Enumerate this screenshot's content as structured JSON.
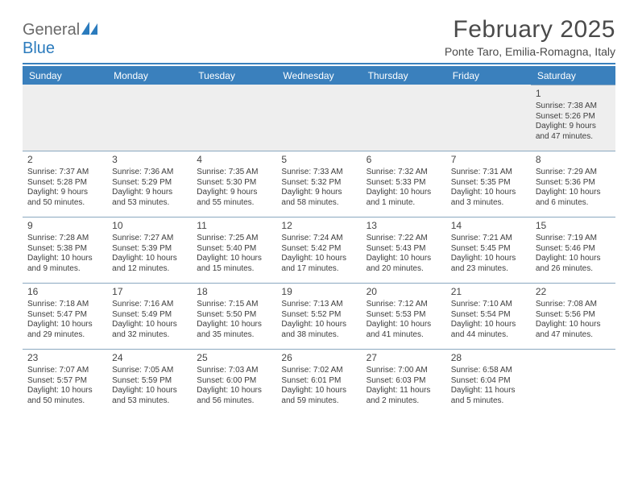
{
  "logo": {
    "part1": "General",
    "part2": "Blue"
  },
  "title": "February 2025",
  "subtitle": "Ponte Taro, Emilia-Romagna, Italy",
  "colors": {
    "header_bar": "#3a80bd",
    "header_text": "#ffffff",
    "text": "#3d3d3d",
    "title_color": "#4a4a4a",
    "logo_gray": "#6a6a6a",
    "logo_blue": "#2b7bbd",
    "blank_bg": "#eeeeee",
    "border": "#8aa8c0"
  },
  "typography": {
    "title_fontsize": 30,
    "subtitle_fontsize": 14,
    "weekday_fontsize": 12,
    "daynum_fontsize": 12,
    "body_fontsize": 10,
    "font_family": "Arial"
  },
  "layout": {
    "columns": 7,
    "rows": 5,
    "first_day_column_index": 6,
    "days_in_month": 28
  },
  "weekdays": [
    "Sunday",
    "Monday",
    "Tuesday",
    "Wednesday",
    "Thursday",
    "Friday",
    "Saturday"
  ],
  "days": [
    {
      "n": 1,
      "sunrise": "7:38 AM",
      "sunset": "5:26 PM",
      "daylight": "9 hours and 47 minutes."
    },
    {
      "n": 2,
      "sunrise": "7:37 AM",
      "sunset": "5:28 PM",
      "daylight": "9 hours and 50 minutes."
    },
    {
      "n": 3,
      "sunrise": "7:36 AM",
      "sunset": "5:29 PM",
      "daylight": "9 hours and 53 minutes."
    },
    {
      "n": 4,
      "sunrise": "7:35 AM",
      "sunset": "5:30 PM",
      "daylight": "9 hours and 55 minutes."
    },
    {
      "n": 5,
      "sunrise": "7:33 AM",
      "sunset": "5:32 PM",
      "daylight": "9 hours and 58 minutes."
    },
    {
      "n": 6,
      "sunrise": "7:32 AM",
      "sunset": "5:33 PM",
      "daylight": "10 hours and 1 minute."
    },
    {
      "n": 7,
      "sunrise": "7:31 AM",
      "sunset": "5:35 PM",
      "daylight": "10 hours and 3 minutes."
    },
    {
      "n": 8,
      "sunrise": "7:29 AM",
      "sunset": "5:36 PM",
      "daylight": "10 hours and 6 minutes."
    },
    {
      "n": 9,
      "sunrise": "7:28 AM",
      "sunset": "5:38 PM",
      "daylight": "10 hours and 9 minutes."
    },
    {
      "n": 10,
      "sunrise": "7:27 AM",
      "sunset": "5:39 PM",
      "daylight": "10 hours and 12 minutes."
    },
    {
      "n": 11,
      "sunrise": "7:25 AM",
      "sunset": "5:40 PM",
      "daylight": "10 hours and 15 minutes."
    },
    {
      "n": 12,
      "sunrise": "7:24 AM",
      "sunset": "5:42 PM",
      "daylight": "10 hours and 17 minutes."
    },
    {
      "n": 13,
      "sunrise": "7:22 AM",
      "sunset": "5:43 PM",
      "daylight": "10 hours and 20 minutes."
    },
    {
      "n": 14,
      "sunrise": "7:21 AM",
      "sunset": "5:45 PM",
      "daylight": "10 hours and 23 minutes."
    },
    {
      "n": 15,
      "sunrise": "7:19 AM",
      "sunset": "5:46 PM",
      "daylight": "10 hours and 26 minutes."
    },
    {
      "n": 16,
      "sunrise": "7:18 AM",
      "sunset": "5:47 PM",
      "daylight": "10 hours and 29 minutes."
    },
    {
      "n": 17,
      "sunrise": "7:16 AM",
      "sunset": "5:49 PM",
      "daylight": "10 hours and 32 minutes."
    },
    {
      "n": 18,
      "sunrise": "7:15 AM",
      "sunset": "5:50 PM",
      "daylight": "10 hours and 35 minutes."
    },
    {
      "n": 19,
      "sunrise": "7:13 AM",
      "sunset": "5:52 PM",
      "daylight": "10 hours and 38 minutes."
    },
    {
      "n": 20,
      "sunrise": "7:12 AM",
      "sunset": "5:53 PM",
      "daylight": "10 hours and 41 minutes."
    },
    {
      "n": 21,
      "sunrise": "7:10 AM",
      "sunset": "5:54 PM",
      "daylight": "10 hours and 44 minutes."
    },
    {
      "n": 22,
      "sunrise": "7:08 AM",
      "sunset": "5:56 PM",
      "daylight": "10 hours and 47 minutes."
    },
    {
      "n": 23,
      "sunrise": "7:07 AM",
      "sunset": "5:57 PM",
      "daylight": "10 hours and 50 minutes."
    },
    {
      "n": 24,
      "sunrise": "7:05 AM",
      "sunset": "5:59 PM",
      "daylight": "10 hours and 53 minutes."
    },
    {
      "n": 25,
      "sunrise": "7:03 AM",
      "sunset": "6:00 PM",
      "daylight": "10 hours and 56 minutes."
    },
    {
      "n": 26,
      "sunrise": "7:02 AM",
      "sunset": "6:01 PM",
      "daylight": "10 hours and 59 minutes."
    },
    {
      "n": 27,
      "sunrise": "7:00 AM",
      "sunset": "6:03 PM",
      "daylight": "11 hours and 2 minutes."
    },
    {
      "n": 28,
      "sunrise": "6:58 AM",
      "sunset": "6:04 PM",
      "daylight": "11 hours and 5 minutes."
    }
  ],
  "labels": {
    "sunrise_prefix": "Sunrise: ",
    "sunset_prefix": "Sunset: ",
    "daylight_prefix": "Daylight: "
  }
}
